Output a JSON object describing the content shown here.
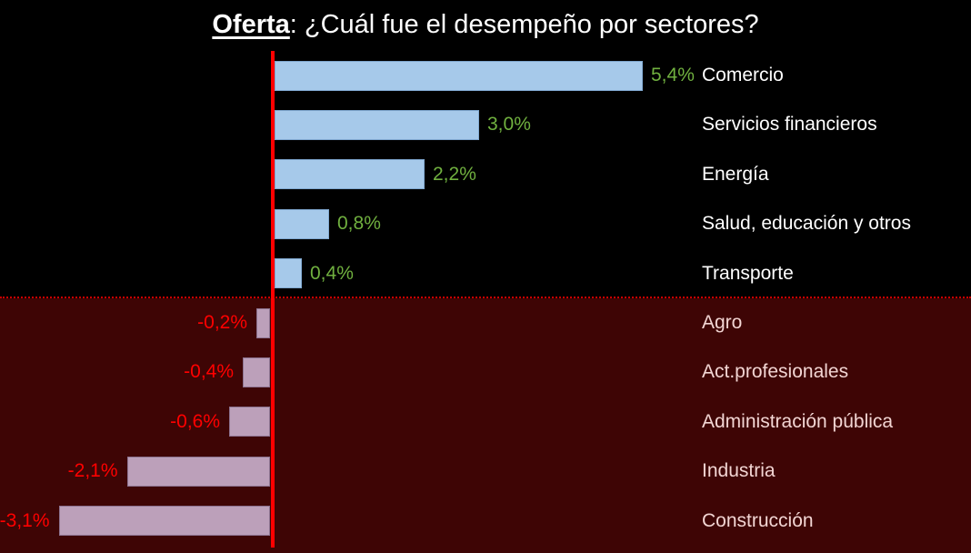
{
  "title": {
    "prefix": "Oferta",
    "rest": ": ¿Cuál fue el desempeño por sectores?"
  },
  "chart_data": {
    "type": "bar",
    "orientation": "horizontal",
    "title": "Oferta: ¿Cuál fue el desempeño por sectores?",
    "categories": [
      "Comercio",
      "Servicios financieros",
      "Energía",
      "Salud, educación y otros",
      "Transporte",
      "Agro",
      "Act.profesionales",
      "Administración pública",
      "Industria",
      "Construcción"
    ],
    "values": [
      5.4,
      3.0,
      2.2,
      0.8,
      0.4,
      -0.2,
      -0.4,
      -0.6,
      -2.1,
      -3.1
    ],
    "value_labels": [
      "5,4%",
      "3,0%",
      "2,2%",
      "0,8%",
      "0,4%",
      "-0,2%",
      "-0,4%",
      "-0,6%",
      "-2,1%",
      "-3,1%"
    ],
    "unit": "%",
    "xlim": [
      -3.5,
      6.5
    ],
    "grid": false,
    "legend": false,
    "zero_axis_line": true,
    "colors": {
      "bg_top": "#000000",
      "bg_bottom": "#3E0505",
      "pos_bar": "#A6C9EA",
      "pos_bar_border": "#7FA7CF",
      "neg_bar": "#BCA0BA",
      "neg_bar_border": "#8D7390",
      "pos_val": "#70B03F",
      "neg_val": "#FF0000",
      "label_top": "#FFFFFF",
      "label_bottom": "#F2D5D3",
      "zero_line": "#FF0000",
      "divider": "#C80000"
    }
  }
}
